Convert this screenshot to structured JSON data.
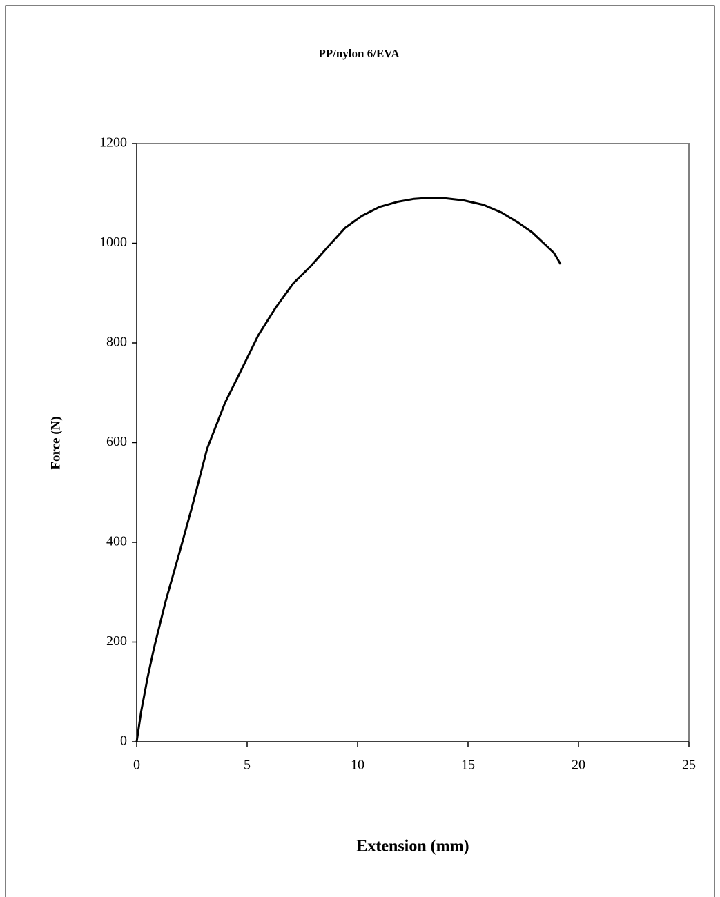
{
  "chart_data": {
    "type": "line",
    "title": "PP/nylon 6/EVA",
    "x_label": "Extension (mm)",
    "y_label": "Force (N)",
    "series": [
      {
        "name": "PP/nylon 6/EVA",
        "color": "#000000",
        "x": [
          0,
          0.2,
          0.5,
          0.78,
          1.3,
          1.94,
          2.5,
          3.19,
          4.0,
          4.75,
          5.5,
          6.31,
          7.1,
          7.9,
          8.7,
          9.44,
          10.2,
          11.0,
          11.8,
          12.56,
          13.2,
          13.8,
          14.8,
          15.7,
          16.5,
          17.25,
          17.9,
          18.5,
          18.9,
          19.19
        ],
        "values": [
          0,
          60,
          130,
          187,
          280,
          380,
          470,
          588,
          680,
          747,
          815,
          872,
          920,
          955,
          995,
          1031,
          1055,
          1073,
          1083,
          1089,
          1091,
          1091,
          1086,
          1077,
          1062,
          1042,
          1022,
          997,
          980,
          958
        ]
      }
    ],
    "xlim": [
      0,
      25
    ],
    "xticks": [
      0,
      5,
      10,
      15,
      20,
      25
    ],
    "ylim": [
      0,
      1200
    ],
    "yticks": [
      0,
      200,
      400,
      600,
      800,
      1000,
      1200
    ]
  }
}
